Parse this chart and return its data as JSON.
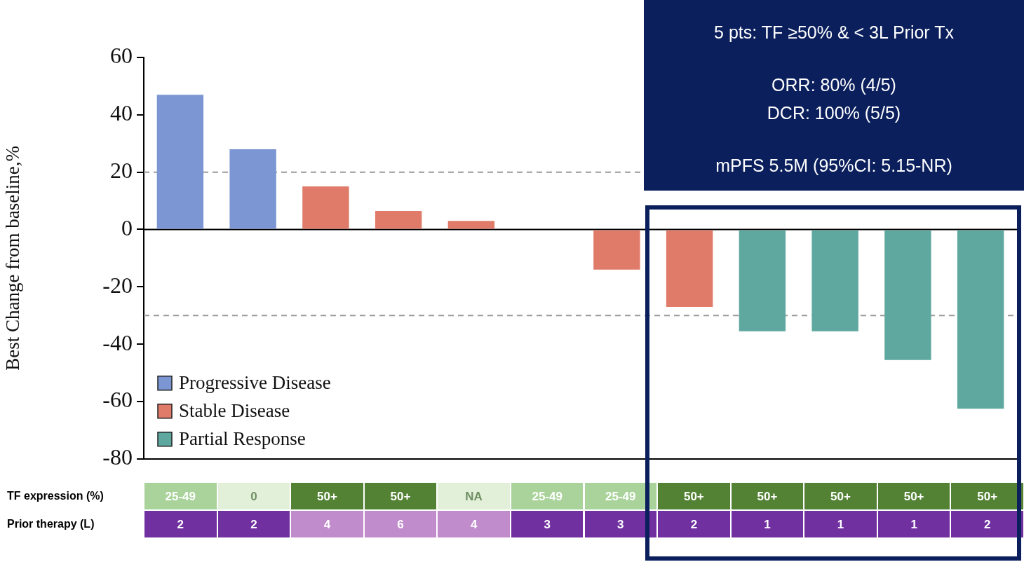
{
  "chart_data": [
    {
      "type": "bar",
      "ylabel": "Best Change from baseline,%",
      "categories": [
        null,
        null,
        null,
        null,
        null,
        null,
        null,
        null,
        null,
        null,
        null,
        null
      ],
      "series": [
        {
          "name": "Progressive Disease",
          "color": "#7b96d2",
          "values": [
            47,
            28,
            null,
            null,
            null,
            null,
            null,
            null,
            null,
            null,
            null,
            null
          ]
        },
        {
          "name": "Stable Disease",
          "color": "#e07b6a",
          "values": [
            null,
            null,
            15,
            6.5,
            3,
            0,
            -14,
            -27,
            null,
            null,
            null,
            null
          ]
        },
        {
          "name": "Partial Response",
          "color": "#5fa8a0",
          "values": [
            null,
            null,
            null,
            null,
            null,
            null,
            null,
            null,
            -35.5,
            -35.5,
            -45.5,
            -62.5
          ]
        }
      ],
      "ylim": [
        -80,
        60
      ],
      "yticks": [
        -80,
        -60,
        -40,
        -20,
        0,
        20,
        40,
        60
      ],
      "grid": false,
      "legend": "bottom left",
      "tick_labels": "y",
      "ref_lines": [
        {
          "axis": "y",
          "value": 20,
          "color": "#999999",
          "line_style": "dashed"
        },
        {
          "axis": "y",
          "value": -30,
          "color": "#999999",
          "line_style": "dashed"
        },
        {
          "axis": "y",
          "value": 0,
          "color": "#000000",
          "line_style": "solid"
        }
      ],
      "annotations": [
        "5 pts: TF ≥50% & < 3L Prior Tx",
        "ORR: 80% (4/5)",
        "DCR: 100% (5/5)",
        "mPFS 5.5M (95%CI: 5.15-NR)"
      ]
    },
    {
      "type": "other",
      "categories": [
        null,
        null,
        null,
        null,
        null,
        null,
        null,
        null,
        null,
        null,
        null,
        null
      ],
      "y_categories": [
        "TF expression (%)",
        "Prior therapy (L)"
      ],
      "cell_labels": [
        [
          "25-49",
          "0",
          "50+",
          "50+",
          "NA",
          "25-49",
          "25-49",
          "50+",
          "50+",
          "50+",
          "50+",
          "50+"
        ],
        [
          "2",
          "2",
          "4",
          "6",
          "4",
          "3",
          "3",
          "2",
          "1",
          "1",
          "1",
          "2"
        ]
      ],
      "colors": [
        [
          "#a9d39a",
          "#e2f0d9",
          "#548235",
          "#548235",
          "#e2f0d9",
          "#a9d39a",
          "#a9d39a",
          "#548235",
          "#548235",
          "#548235",
          "#548235",
          "#548235"
        ],
        [
          "#7030a0",
          "#7030a0",
          "#c08ccc",
          "#c08ccc",
          "#c08ccc",
          "#7030a0",
          "#7030a0",
          "#7030a0",
          "#7030a0",
          "#7030a0",
          "#7030a0",
          "#7030a0"
        ]
      ]
    }
  ]
}
